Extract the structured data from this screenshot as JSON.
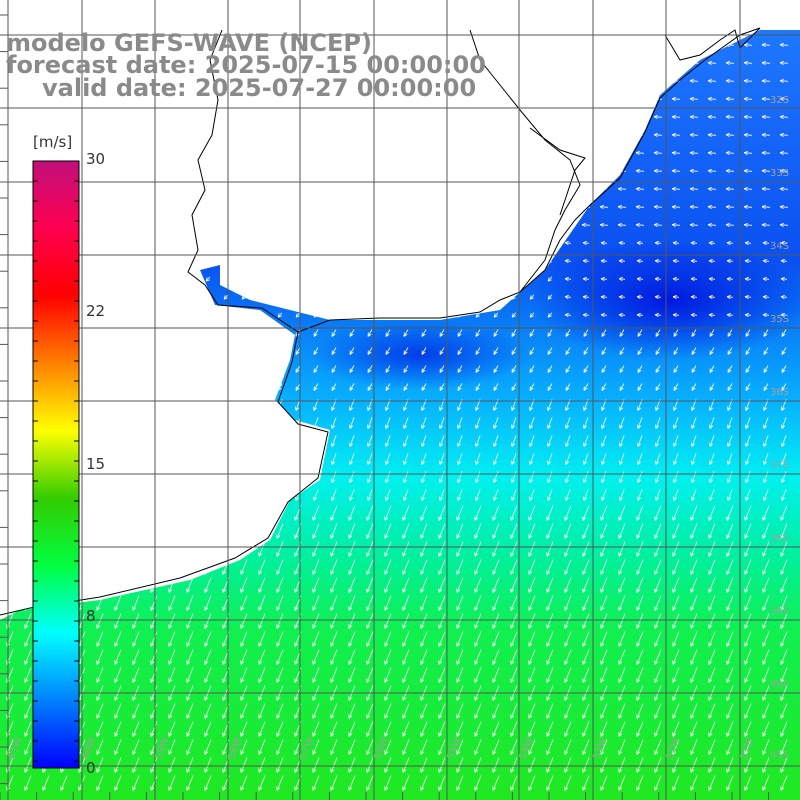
{
  "header": {
    "line1": "modelo GEFS-WAVE (NCEP)",
    "line2": "forecast date: 2025-07-15 00:00:00",
    "line3": "valid date: 2025-07-27 00:00:00"
  },
  "colorbar": {
    "unit": "[m/s]",
    "ticks": [
      "30",
      "22",
      "15",
      "8",
      "0"
    ],
    "colors": [
      "#0000ff",
      "#0080ff",
      "#00ffff",
      "#00ff40",
      "#33cc00",
      "#ffff00",
      "#ff8000",
      "#ff0000",
      "#ff0050",
      "#c0107a"
    ]
  },
  "grid": {
    "lat_labels": [
      "32S",
      "33S",
      "34S",
      "35S",
      "36S",
      "37S",
      "38S",
      "39S",
      "40S",
      "41S"
    ],
    "lon_labels": [
      "61W",
      "60W",
      "59W",
      "58W",
      "57W",
      "56W",
      "55W",
      "54W",
      "53W",
      "52W",
      "51W"
    ]
  },
  "colors": {
    "land": "#ffffff",
    "coast": "#000000",
    "gridline": "#444444",
    "label": "#9a9a9a"
  }
}
